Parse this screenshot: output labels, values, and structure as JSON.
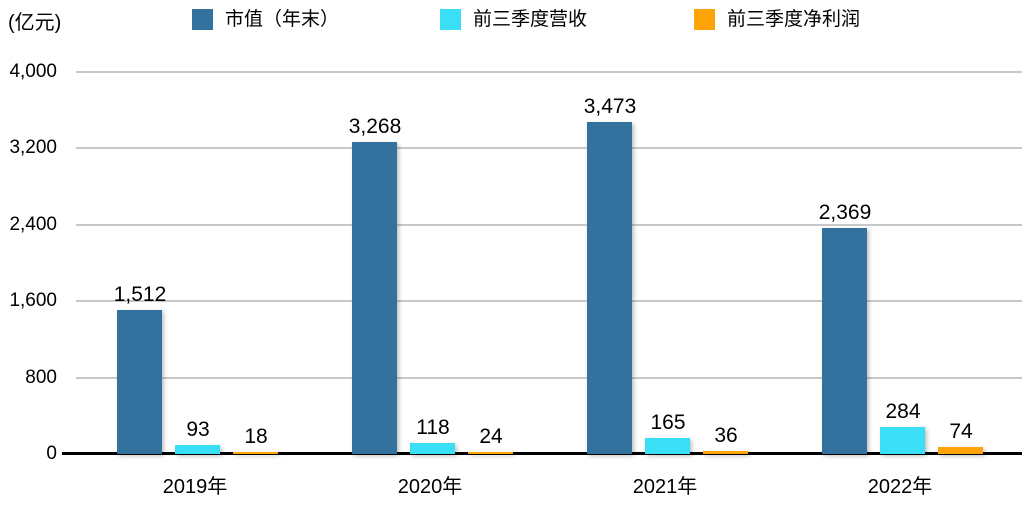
{
  "chart_data": {
    "type": "bar",
    "title": "",
    "unit_label": "(亿元)",
    "legend_position": "top",
    "grid": true,
    "background": "#FFFFFF",
    "axis_color": "#000000",
    "gridline_color": "#C8C8C8",
    "categories": [
      "2019年",
      "2020年",
      "2021年",
      "2022年"
    ],
    "series": [
      {
        "name": "市值（年末）",
        "color": "#33729F",
        "values": [
          1512,
          3268,
          3473,
          2369
        ],
        "labels": [
          "1,512",
          "3,268",
          "3,473",
          "2,369"
        ]
      },
      {
        "name": "前三季度营收",
        "color": "#3ADFF5",
        "values": [
          93,
          118,
          165,
          284
        ],
        "labels": [
          "93",
          "118",
          "165",
          "284"
        ]
      },
      {
        "name": "前三季度净利润",
        "color": "#FFA407",
        "values": [
          18,
          24,
          36,
          74
        ],
        "labels": [
          "18",
          "24",
          "36",
          "74"
        ]
      }
    ],
    "ylim": [
      0,
      4000
    ],
    "yticks": [
      0,
      800,
      1600,
      2400,
      3200,
      4000
    ],
    "ytick_labels": [
      "0",
      "800",
      "1,600",
      "2,400",
      "3,200",
      "4,000"
    ]
  }
}
